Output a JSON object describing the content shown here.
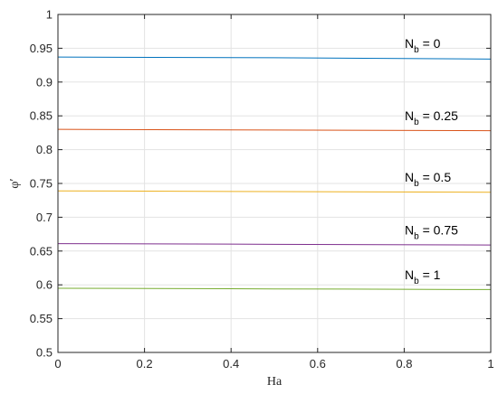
{
  "chart_data": {
    "type": "line",
    "xlabel": "Ha",
    "ylabel": "φ′",
    "xlim": [
      0,
      1
    ],
    "ylim": [
      0.5,
      1
    ],
    "x_ticks": [
      "0",
      "0.2",
      "0.4",
      "0.6",
      "0.8",
      "1"
    ],
    "y_ticks": [
      "0.5",
      "0.55",
      "0.6",
      "0.65",
      "0.7",
      "0.75",
      "0.8",
      "0.85",
      "0.9",
      "0.95",
      "1"
    ],
    "grid": true,
    "series": [
      {
        "name": "N_b = 0",
        "label_main": "N",
        "label_sub": "b",
        "label_rest": " = 0",
        "color": "#0072BD",
        "x": [
          0,
          0.5,
          1
        ],
        "y": [
          0.937,
          0.936,
          0.934
        ]
      },
      {
        "name": "N_b = 0.25",
        "label_main": "N",
        "label_sub": "b",
        "label_rest": " = 0.25",
        "color": "#D95319",
        "x": [
          0,
          0.5,
          1
        ],
        "y": [
          0.83,
          0.829,
          0.828
        ]
      },
      {
        "name": "N_b = 0.5",
        "label_main": "N",
        "label_sub": "b",
        "label_rest": " = 0.5",
        "color": "#EDB120",
        "x": [
          0,
          0.5,
          1
        ],
        "y": [
          0.739,
          0.738,
          0.737
        ]
      },
      {
        "name": "N_b = 0.75",
        "label_main": "N",
        "label_sub": "b",
        "label_rest": " = 0.75",
        "color": "#7E2F8E",
        "x": [
          0,
          0.5,
          1
        ],
        "y": [
          0.661,
          0.66,
          0.659
        ]
      },
      {
        "name": "N_b = 1",
        "label_main": "N",
        "label_sub": "b",
        "label_rest": " = 1",
        "color": "#77AC30",
        "x": [
          0,
          0.5,
          1
        ],
        "y": [
          0.595,
          0.594,
          0.593
        ]
      }
    ]
  }
}
